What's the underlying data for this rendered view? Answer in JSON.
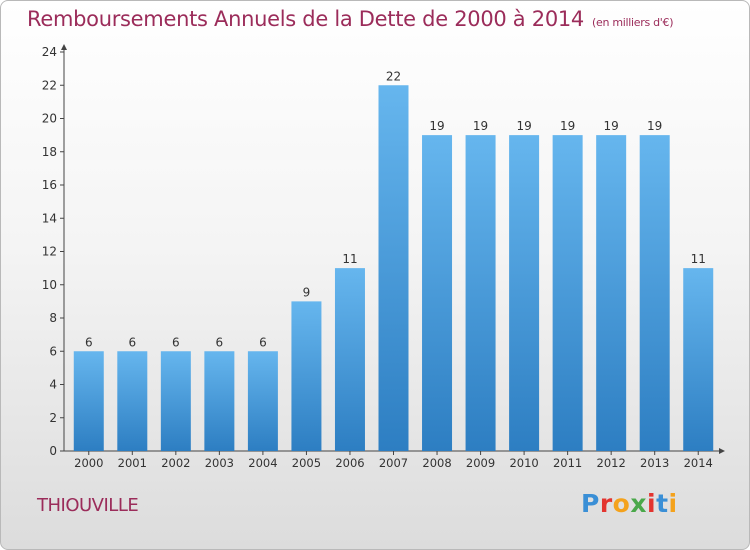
{
  "title": "Remboursements Annuels de la Dette de 2000 à 2014",
  "unit": "(en milliers d'€)",
  "place": "THIOUVILLE",
  "logo": {
    "letters": [
      "P",
      "r",
      "o",
      "x",
      "i",
      "t",
      "i"
    ],
    "colors": [
      "#3a8fd6",
      "#e3342f",
      "#f4a21c",
      "#4aa84a",
      "#e3342f",
      "#3a8fd6",
      "#f4a21c"
    ]
  },
  "colors": {
    "bar_top": "#66b6ee",
    "bar_bottom": "#2d7ec2",
    "title": "#9b2c5a"
  },
  "chart_data": {
    "type": "bar",
    "title": "Remboursements Annuels de la Dette de 2000 à 2014",
    "xlabel": "",
    "ylabel": "",
    "categories": [
      "2000",
      "2001",
      "2002",
      "2003",
      "2004",
      "2005",
      "2006",
      "2007",
      "2008",
      "2009",
      "2010",
      "2011",
      "2012",
      "2013",
      "2014"
    ],
    "values": [
      6,
      6,
      6,
      6,
      6,
      9,
      11,
      22,
      19,
      19,
      19,
      19,
      19,
      19,
      11
    ],
    "ylim": [
      0,
      24
    ],
    "yticks": [
      0,
      2,
      4,
      6,
      8,
      10,
      12,
      14,
      16,
      18,
      20,
      22,
      24
    ],
    "grid": false,
    "data_labels": true
  }
}
